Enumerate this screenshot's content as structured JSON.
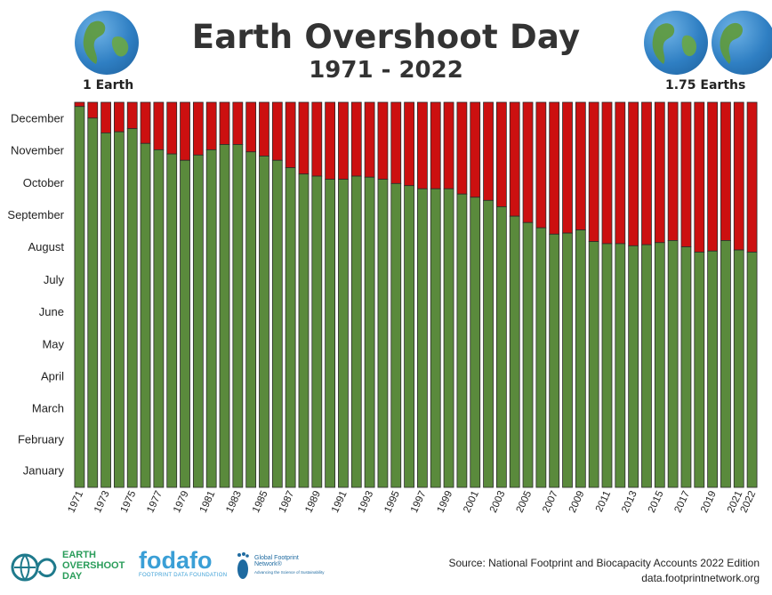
{
  "header": {
    "title": "Earth Overshoot Day",
    "subtitle": "1971 - 2022",
    "left_label": "1 Earth",
    "right_label": "1.75 Earths"
  },
  "chart_data": {
    "type": "bar",
    "stacked": true,
    "title": "Earth Overshoot Day",
    "subtitle": "1971 - 2022",
    "y_tick_labels": [
      "January",
      "February",
      "March",
      "April",
      "May",
      "June",
      "July",
      "August",
      "September",
      "October",
      "November",
      "December"
    ],
    "x_tick_labels": [
      "1971",
      "1973",
      "1975",
      "1977",
      "1979",
      "1981",
      "1983",
      "1985",
      "1987",
      "1989",
      "1991",
      "1993",
      "1995",
      "1997",
      "1999",
      "2001",
      "2003",
      "2005",
      "2007",
      "2009",
      "2011",
      "2013",
      "2015",
      "2017",
      "2019",
      "2021",
      "2022"
    ],
    "ylim_days": [
      0,
      365
    ],
    "categories": [
      1971,
      1972,
      1973,
      1974,
      1975,
      1976,
      1977,
      1978,
      1979,
      1980,
      1981,
      1982,
      1983,
      1984,
      1985,
      1986,
      1987,
      1988,
      1989,
      1990,
      1991,
      1992,
      1993,
      1994,
      1995,
      1996,
      1997,
      1998,
      1999,
      2000,
      2001,
      2002,
      2003,
      2004,
      2005,
      2006,
      2007,
      2008,
      2009,
      2010,
      2011,
      2012,
      2013,
      2014,
      2015,
      2016,
      2017,
      2018,
      2019,
      2020,
      2021,
      2022
    ],
    "series": [
      {
        "values": [
          361,
          350,
          336,
          337,
          340,
          326,
          320,
          316,
          310,
          315,
          320,
          325,
          325,
          318,
          314,
          310,
          303,
          297,
          295,
          292,
          292,
          295,
          294,
          292,
          288,
          286,
          283,
          283,
          283,
          278,
          275,
          272,
          266,
          257,
          251,
          246,
          240,
          241,
          244,
          233,
          231,
          231,
          229,
          230,
          232,
          234,
          228,
          223,
          224,
          234,
          225,
          223
        ]
      },
      {
        "values": [
          4,
          15,
          29,
          28,
          25,
          39,
          45,
          49,
          55,
          50,
          45,
          40,
          40,
          47,
          51,
          55,
          62,
          68,
          70,
          73,
          73,
          70,
          71,
          73,
          77,
          79,
          82,
          82,
          82,
          87,
          90,
          93,
          99,
          108,
          114,
          119,
          125,
          124,
          121,
          132,
          134,
          134,
          136,
          135,
          133,
          131,
          137,
          142,
          141,
          131,
          140,
          142
        ]
      }
    ],
    "colors": {
      "green": "#5a8a3c",
      "red": "#cc1010"
    }
  },
  "footer": {
    "logo1_line1": "EARTH",
    "logo1_line2": "OVERSHOOT",
    "logo1_line3": "DAY",
    "logo2_name": "fodafo",
    "logo2_tag": "FOOTPRINT DATA FOUNDATION",
    "logo3_name": "Global Footprint Network®",
    "logo3_tag": "Advancing the Science of Sustainability",
    "source_line1": "Source: National Footprint and Biocapacity Accounts 2022 Edition",
    "source_line2": "data.footprintnetwork.org"
  }
}
